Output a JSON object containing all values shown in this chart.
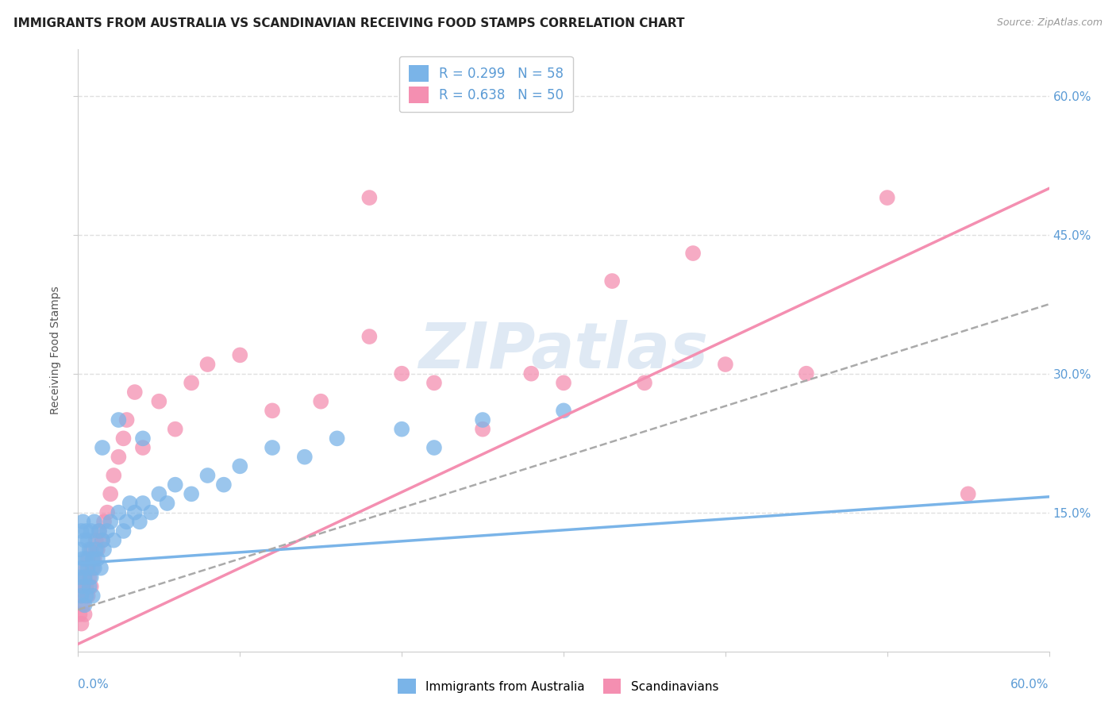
{
  "title": "IMMIGRANTS FROM AUSTRALIA VS SCANDINAVIAN RECEIVING FOOD STAMPS CORRELATION CHART",
  "source": "Source: ZipAtlas.com",
  "ylabel": "Receiving Food Stamps",
  "ytick_labels": [
    "15.0%",
    "30.0%",
    "45.0%",
    "60.0%"
  ],
  "ytick_values": [
    0.15,
    0.3,
    0.45,
    0.6
  ],
  "xrange": [
    0,
    0.6
  ],
  "yrange": [
    0,
    0.65
  ],
  "legend_entries": [
    {
      "label": "R = 0.299   N = 58",
      "color": "#7ab4e8"
    },
    {
      "label": "R = 0.638   N = 50",
      "color": "#f48fb1"
    }
  ],
  "australia_color": "#7ab4e8",
  "scandinavian_color": "#f48fb1",
  "aus_line_slope": 0.12,
  "aus_line_intercept": 0.095,
  "sca_line_slope": 0.82,
  "sca_line_intercept": 0.008,
  "dash_line_slope": 0.55,
  "dash_line_intercept": 0.045,
  "australia_scatter_x": [
    0.001,
    0.001,
    0.002,
    0.002,
    0.002,
    0.003,
    0.003,
    0.003,
    0.004,
    0.004,
    0.004,
    0.005,
    0.005,
    0.005,
    0.006,
    0.006,
    0.007,
    0.007,
    0.008,
    0.008,
    0.009,
    0.009,
    0.01,
    0.01,
    0.011,
    0.012,
    0.013,
    0.014,
    0.015,
    0.016,
    0.018,
    0.02,
    0.022,
    0.025,
    0.028,
    0.03,
    0.032,
    0.035,
    0.038,
    0.04,
    0.045,
    0.05,
    0.055,
    0.06,
    0.07,
    0.08,
    0.09,
    0.1,
    0.12,
    0.14,
    0.16,
    0.2,
    0.22,
    0.25,
    0.3,
    0.04,
    0.025,
    0.015
  ],
  "australia_scatter_y": [
    0.08,
    0.11,
    0.06,
    0.09,
    0.13,
    0.07,
    0.1,
    0.14,
    0.05,
    0.08,
    0.12,
    0.06,
    0.1,
    0.13,
    0.09,
    0.12,
    0.07,
    0.11,
    0.08,
    0.13,
    0.06,
    0.1,
    0.09,
    0.14,
    0.11,
    0.1,
    0.13,
    0.09,
    0.12,
    0.11,
    0.13,
    0.14,
    0.12,
    0.15,
    0.13,
    0.14,
    0.16,
    0.15,
    0.14,
    0.16,
    0.15,
    0.17,
    0.16,
    0.18,
    0.17,
    0.19,
    0.18,
    0.2,
    0.22,
    0.21,
    0.23,
    0.24,
    0.22,
    0.25,
    0.26,
    0.23,
    0.25,
    0.22
  ],
  "scandinavian_scatter_x": [
    0.001,
    0.002,
    0.002,
    0.003,
    0.003,
    0.004,
    0.004,
    0.005,
    0.005,
    0.006,
    0.006,
    0.007,
    0.008,
    0.008,
    0.009,
    0.01,
    0.011,
    0.012,
    0.013,
    0.015,
    0.016,
    0.018,
    0.02,
    0.022,
    0.025,
    0.028,
    0.03,
    0.035,
    0.04,
    0.05,
    0.06,
    0.07,
    0.08,
    0.1,
    0.12,
    0.15,
    0.18,
    0.2,
    0.25,
    0.3,
    0.35,
    0.4,
    0.28,
    0.22,
    0.33,
    0.38,
    0.45,
    0.5,
    0.18,
    0.55
  ],
  "scandinavian_scatter_y": [
    0.04,
    0.06,
    0.03,
    0.07,
    0.05,
    0.08,
    0.04,
    0.07,
    0.09,
    0.06,
    0.1,
    0.08,
    0.07,
    0.11,
    0.09,
    0.1,
    0.12,
    0.11,
    0.13,
    0.12,
    0.14,
    0.15,
    0.17,
    0.19,
    0.21,
    0.23,
    0.25,
    0.28,
    0.22,
    0.27,
    0.24,
    0.29,
    0.31,
    0.32,
    0.26,
    0.27,
    0.34,
    0.3,
    0.24,
    0.29,
    0.29,
    0.31,
    0.3,
    0.29,
    0.4,
    0.43,
    0.3,
    0.49,
    0.49,
    0.17
  ],
  "watermark_text": "ZIPatlas",
  "background_color": "#ffffff",
  "grid_color": "#e0e0e0",
  "title_fontsize": 11,
  "legend_fontsize": 12
}
